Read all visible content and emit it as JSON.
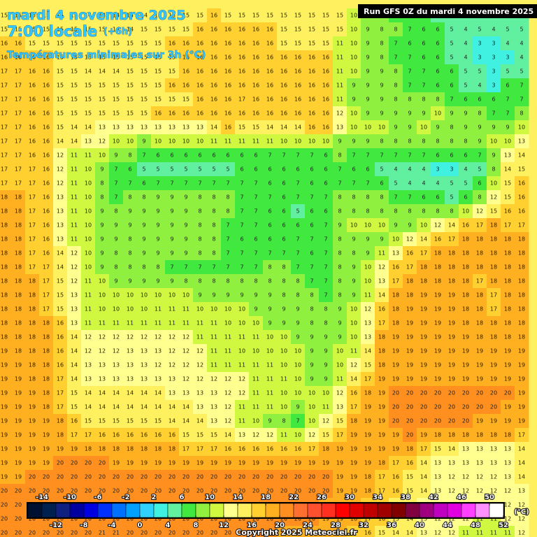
{
  "header": {
    "date": "mardi 4 novembre 2025",
    "time": "7:00 locale",
    "offset": "(+6h)",
    "field": "Températures minimales sur 3h (°C)",
    "run": "Run GFS 0Z du mardi 4 novembre 2025",
    "copyright": "Copyright 2025 Meteociel.fr"
  },
  "colorbar": {
    "unit": "(°C)",
    "lim": [
      -16,
      52
    ],
    "colors": [
      "#001030",
      "#002050",
      "#102080",
      "#0000a0",
      "#0000e0",
      "#0030ff",
      "#0070ff",
      "#00a0ff",
      "#30d0ff",
      "#40f0e0",
      "#60f0a0",
      "#40e840",
      "#90f040",
      "#d0f840",
      "#ffff90",
      "#fff060",
      "#ffd030",
      "#ffb020",
      "#ff9020",
      "#ff7030",
      "#ff5030",
      "#ff3020",
      "#ff0000",
      "#e00000",
      "#c00000",
      "#a00000",
      "#800000",
      "#800040",
      "#a00080",
      "#c000c0",
      "#e000e0",
      "#ff40ff",
      "#ff90ff",
      "#ffffff"
    ],
    "ticks_top": [
      -14,
      -10,
      -6,
      -2,
      2,
      6,
      10,
      14,
      18,
      22,
      26,
      30,
      34,
      38,
      42,
      46,
      50
    ],
    "ticks_bottom": [
      -12,
      -8,
      -4,
      0,
      4,
      8,
      12,
      16,
      20,
      24,
      28,
      32,
      36,
      40,
      44,
      48,
      52
    ]
  },
  "grid": [
    [
      15,
      15,
      15,
      15,
      15,
      15,
      14,
      14,
      14,
      14,
      14,
      14,
      15,
      15,
      15,
      16,
      15,
      15,
      15,
      15,
      15,
      15,
      15,
      15,
      15,
      10,
      9,
      8,
      7,
      7,
      6,
      5,
      5,
      4,
      5,
      5,
      5,
      5
    ],
    [
      15,
      15,
      15,
      15,
      15,
      15,
      15,
      15,
      14,
      14,
      15,
      15,
      15,
      15,
      16,
      16,
      16,
      16,
      16,
      16,
      15,
      15,
      15,
      15,
      15,
      10,
      9,
      8,
      8,
      7,
      6,
      6,
      5,
      4,
      5,
      4,
      5,
      5
    ],
    [
      16,
      16,
      15,
      15,
      15,
      15,
      15,
      15,
      15,
      15,
      15,
      15,
      16,
      16,
      16,
      16,
      16,
      16,
      16,
      16,
      15,
      15,
      15,
      15,
      11,
      10,
      9,
      8,
      7,
      6,
      6,
      6,
      5,
      4,
      3,
      3,
      4,
      4
    ],
    [
      16,
      16,
      16,
      16,
      15,
      15,
      15,
      15,
      15,
      15,
      15,
      15,
      15,
      16,
      16,
      16,
      16,
      16,
      16,
      16,
      16,
      16,
      16,
      16,
      11,
      10,
      9,
      8,
      7,
      7,
      6,
      6,
      5,
      4,
      3,
      3,
      3,
      4
    ],
    [
      17,
      17,
      16,
      16,
      15,
      15,
      14,
      14,
      14,
      15,
      15,
      15,
      15,
      16,
      16,
      16,
      16,
      16,
      16,
      16,
      16,
      16,
      16,
      16,
      11,
      10,
      9,
      9,
      8,
      7,
      7,
      6,
      6,
      5,
      5,
      3,
      5,
      5
    ],
    [
      17,
      17,
      16,
      16,
      15,
      15,
      15,
      15,
      15,
      15,
      15,
      15,
      16,
      16,
      16,
      16,
      16,
      16,
      16,
      16,
      16,
      16,
      16,
      16,
      11,
      9,
      9,
      9,
      8,
      7,
      7,
      6,
      6,
      5,
      4,
      3,
      6,
      7
    ],
    [
      17,
      17,
      16,
      16,
      15,
      15,
      15,
      15,
      15,
      15,
      15,
      15,
      15,
      15,
      16,
      16,
      16,
      17,
      16,
      16,
      16,
      16,
      16,
      16,
      11,
      9,
      9,
      9,
      8,
      8,
      8,
      8,
      7,
      6,
      6,
      6,
      7,
      7
    ],
    [
      17,
      17,
      16,
      16,
      15,
      15,
      15,
      15,
      15,
      15,
      15,
      16,
      16,
      16,
      16,
      16,
      16,
      16,
      16,
      16,
      16,
      16,
      16,
      16,
      12,
      10,
      9,
      9,
      9,
      9,
      9,
      10,
      9,
      9,
      8,
      7,
      7,
      8
    ],
    [
      17,
      17,
      16,
      16,
      15,
      14,
      14,
      13,
      13,
      13,
      13,
      13,
      13,
      13,
      13,
      14,
      16,
      15,
      15,
      14,
      14,
      14,
      16,
      16,
      13,
      10,
      10,
      10,
      9,
      9,
      10,
      9,
      8,
      9,
      9,
      9,
      9,
      10
    ],
    [
      17,
      17,
      16,
      16,
      14,
      14,
      13,
      12,
      10,
      10,
      9,
      10,
      10,
      10,
      10,
      11,
      11,
      11,
      11,
      11,
      10,
      10,
      10,
      10,
      9,
      9,
      9,
      8,
      8,
      8,
      8,
      8,
      8,
      8,
      9,
      10,
      10,
      13
    ],
    [
      17,
      17,
      16,
      16,
      12,
      11,
      11,
      10,
      9,
      8,
      7,
      6,
      6,
      6,
      6,
      6,
      6,
      6,
      6,
      7,
      7,
      7,
      7,
      6,
      8,
      7,
      7,
      7,
      7,
      7,
      7,
      6,
      6,
      6,
      7,
      9,
      13,
      14
    ],
    [
      17,
      17,
      17,
      16,
      12,
      11,
      10,
      9,
      7,
      6,
      5,
      5,
      5,
      5,
      5,
      5,
      5,
      6,
      6,
      6,
      6,
      6,
      6,
      6,
      7,
      6,
      6,
      5,
      4,
      4,
      4,
      3,
      3,
      4,
      5,
      8,
      14,
      15
    ],
    [
      17,
      17,
      17,
      16,
      12,
      11,
      10,
      8,
      7,
      7,
      6,
      7,
      7,
      7,
      7,
      7,
      7,
      7,
      7,
      6,
      6,
      7,
      6,
      6,
      7,
      7,
      7,
      6,
      5,
      4,
      4,
      4,
      5,
      5,
      6,
      10,
      15,
      16
    ],
    [
      18,
      18,
      17,
      16,
      13,
      11,
      10,
      8,
      7,
      8,
      8,
      9,
      9,
      9,
      8,
      8,
      8,
      7,
      7,
      7,
      6,
      7,
      7,
      7,
      8,
      8,
      8,
      8,
      7,
      7,
      6,
      6,
      5,
      6,
      8,
      12,
      15,
      16
    ],
    [
      18,
      18,
      17,
      16,
      13,
      11,
      10,
      9,
      8,
      9,
      9,
      9,
      9,
      9,
      8,
      8,
      8,
      7,
      7,
      6,
      6,
      5,
      6,
      6,
      8,
      8,
      8,
      8,
      8,
      8,
      8,
      8,
      8,
      10,
      12,
      15,
      16,
      16
    ],
    [
      18,
      18,
      17,
      16,
      13,
      11,
      10,
      9,
      9,
      9,
      9,
      9,
      9,
      9,
      8,
      8,
      7,
      7,
      7,
      6,
      6,
      6,
      6,
      7,
      9,
      10,
      10,
      10,
      9,
      9,
      10,
      12,
      14,
      16,
      17,
      18,
      17,
      17
    ],
    [
      18,
      18,
      17,
      16,
      13,
      11,
      10,
      9,
      9,
      8,
      9,
      9,
      9,
      9,
      8,
      8,
      7,
      6,
      6,
      6,
      6,
      7,
      7,
      7,
      8,
      9,
      9,
      9,
      10,
      12,
      14,
      16,
      17,
      18,
      18,
      18,
      18,
      18
    ],
    [
      18,
      18,
      17,
      16,
      14,
      12,
      10,
      9,
      8,
      8,
      9,
      9,
      9,
      9,
      8,
      8,
      7,
      7,
      7,
      7,
      7,
      7,
      6,
      7,
      8,
      8,
      9,
      11,
      13,
      16,
      17,
      18,
      18,
      18,
      18,
      18,
      18,
      18
    ],
    [
      18,
      18,
      17,
      17,
      14,
      12,
      10,
      9,
      8,
      8,
      8,
      8,
      7,
      7,
      7,
      7,
      7,
      7,
      7,
      8,
      8,
      7,
      7,
      7,
      8,
      9,
      10,
      12,
      16,
      17,
      18,
      18,
      18,
      18,
      18,
      18,
      18,
      18
    ],
    [
      18,
      18,
      18,
      17,
      15,
      12,
      11,
      10,
      9,
      9,
      9,
      9,
      9,
      8,
      8,
      8,
      8,
      8,
      8,
      8,
      8,
      8,
      7,
      7,
      8,
      9,
      10,
      13,
      17,
      18,
      18,
      18,
      18,
      18,
      17,
      18,
      18,
      18
    ],
    [
      18,
      18,
      18,
      17,
      15,
      13,
      11,
      10,
      10,
      10,
      10,
      10,
      10,
      10,
      9,
      9,
      9,
      9,
      9,
      9,
      8,
      8,
      8,
      7,
      8,
      9,
      11,
      14,
      18,
      18,
      19,
      19,
      19,
      18,
      18,
      17,
      18,
      18
    ],
    [
      18,
      18,
      18,
      17,
      15,
      13,
      11,
      10,
      10,
      10,
      10,
      11,
      11,
      11,
      10,
      10,
      10,
      10,
      9,
      9,
      9,
      9,
      8,
      8,
      9,
      10,
      12,
      16,
      18,
      19,
      19,
      19,
      19,
      18,
      18,
      17,
      18,
      18
    ],
    [
      18,
      18,
      18,
      18,
      16,
      13,
      11,
      11,
      11,
      11,
      11,
      11,
      11,
      11,
      11,
      11,
      10,
      10,
      10,
      9,
      9,
      9,
      8,
      8,
      9,
      10,
      13,
      17,
      18,
      19,
      19,
      19,
      19,
      18,
      18,
      18,
      18,
      18
    ],
    [
      18,
      18,
      18,
      18,
      16,
      14,
      12,
      12,
      12,
      12,
      12,
      12,
      12,
      12,
      11,
      11,
      11,
      11,
      11,
      10,
      10,
      9,
      9,
      9,
      9,
      10,
      13,
      18,
      19,
      19,
      19,
      19,
      19,
      19,
      18,
      18,
      18,
      18
    ],
    [
      19,
      18,
      18,
      18,
      16,
      14,
      12,
      12,
      12,
      13,
      13,
      13,
      12,
      12,
      12,
      11,
      11,
      10,
      10,
      10,
      10,
      10,
      9,
      9,
      10,
      11,
      14,
      18,
      19,
      19,
      19,
      19,
      19,
      19,
      19,
      19,
      19,
      19
    ],
    [
      19,
      19,
      18,
      18,
      16,
      14,
      13,
      13,
      13,
      13,
      13,
      12,
      12,
      12,
      12,
      11,
      11,
      11,
      11,
      11,
      10,
      10,
      9,
      9,
      10,
      12,
      15,
      18,
      19,
      19,
      19,
      19,
      19,
      19,
      19,
      19,
      19,
      19
    ],
    [
      19,
      19,
      18,
      18,
      17,
      14,
      13,
      13,
      13,
      13,
      13,
      13,
      13,
      12,
      12,
      12,
      12,
      12,
      11,
      11,
      11,
      10,
      9,
      9,
      11,
      14,
      17,
      19,
      19,
      19,
      19,
      19,
      19,
      19,
      19,
      19,
      19,
      19
    ],
    [
      19,
      19,
      19,
      18,
      17,
      15,
      14,
      14,
      14,
      14,
      14,
      14,
      13,
      13,
      13,
      13,
      12,
      12,
      11,
      11,
      10,
      10,
      10,
      10,
      12,
      16,
      18,
      19,
      20,
      20,
      20,
      20,
      20,
      20,
      20,
      20,
      20,
      19
    ],
    [
      19,
      19,
      19,
      18,
      17,
      15,
      14,
      14,
      14,
      14,
      14,
      14,
      14,
      14,
      13,
      13,
      12,
      11,
      11,
      11,
      10,
      9,
      10,
      11,
      13,
      17,
      19,
      19,
      20,
      20,
      20,
      20,
      20,
      20,
      20,
      20,
      19,
      19
    ],
    [
      19,
      19,
      19,
      19,
      18,
      16,
      15,
      15,
      15,
      15,
      15,
      15,
      14,
      14,
      14,
      13,
      12,
      11,
      10,
      9,
      8,
      7,
      10,
      12,
      15,
      18,
      19,
      19,
      20,
      20,
      20,
      20,
      20,
      20,
      19,
      19,
      19,
      19
    ],
    [
      19,
      19,
      19,
      19,
      18,
      17,
      17,
      16,
      16,
      16,
      16,
      16,
      16,
      15,
      15,
      15,
      14,
      13,
      12,
      12,
      11,
      10,
      12,
      15,
      17,
      19,
      19,
      19,
      19,
      20,
      19,
      18,
      18,
      18,
      18,
      18,
      18,
      17
    ],
    [
      19,
      19,
      19,
      19,
      19,
      19,
      18,
      18,
      18,
      18,
      18,
      18,
      18,
      17,
      17,
      17,
      16,
      16,
      16,
      16,
      16,
      16,
      17,
      18,
      19,
      19,
      19,
      19,
      19,
      18,
      17,
      15,
      14,
      13,
      13,
      13,
      13,
      14
    ],
    [
      19,
      19,
      19,
      19,
      20,
      20,
      20,
      20,
      19,
      19,
      19,
      19,
      19,
      19,
      19,
      19,
      19,
      19,
      19,
      19,
      19,
      19,
      19,
      19,
      19,
      19,
      19,
      18,
      17,
      16,
      14,
      13,
      13,
      13,
      13,
      13,
      13,
      14
    ],
    [
      19,
      19,
      20,
      20,
      20,
      20,
      20,
      20,
      20,
      20,
      20,
      20,
      20,
      20,
      20,
      20,
      20,
      20,
      20,
      20,
      20,
      20,
      20,
      20,
      19,
      19,
      18,
      17,
      16,
      15,
      14,
      13,
      12,
      12,
      12,
      12,
      13,
      14
    ],
    [
      20,
      20,
      20,
      20,
      20,
      20,
      20,
      20,
      20,
      20,
      20,
      20,
      20,
      20,
      20,
      20,
      20,
      20,
      20,
      20,
      20,
      20,
      20,
      20,
      19,
      19,
      18,
      17,
      16,
      15,
      14,
      13,
      12,
      12,
      12,
      12,
      12,
      13
    ],
    [
      20,
      20,
      20,
      20,
      20,
      20,
      20,
      20,
      20,
      20,
      20,
      20,
      20,
      20,
      20,
      20,
      20,
      20,
      20,
      20,
      20,
      20,
      20,
      19,
      19,
      18,
      17,
      16,
      15,
      14,
      13,
      12,
      12,
      12,
      12,
      12,
      12,
      12
    ],
    [
      20,
      20,
      20,
      20,
      20,
      20,
      20,
      20,
      20,
      20,
      20,
      20,
      20,
      20,
      20,
      20,
      20,
      20,
      20,
      20,
      20,
      20,
      20,
      19,
      19,
      18,
      17,
      16,
      15,
      14,
      13,
      12,
      12,
      12,
      11,
      11,
      12,
      12
    ],
    [
      20,
      20,
      20,
      20,
      20,
      20,
      20,
      21,
      21,
      20,
      20,
      20,
      20,
      20,
      20,
      20,
      20,
      20,
      20,
      20,
      19,
      19,
      18,
      18,
      18,
      17,
      16,
      15,
      14,
      14,
      13,
      12,
      12,
      11,
      11,
      11,
      11,
      12
    ]
  ]
}
